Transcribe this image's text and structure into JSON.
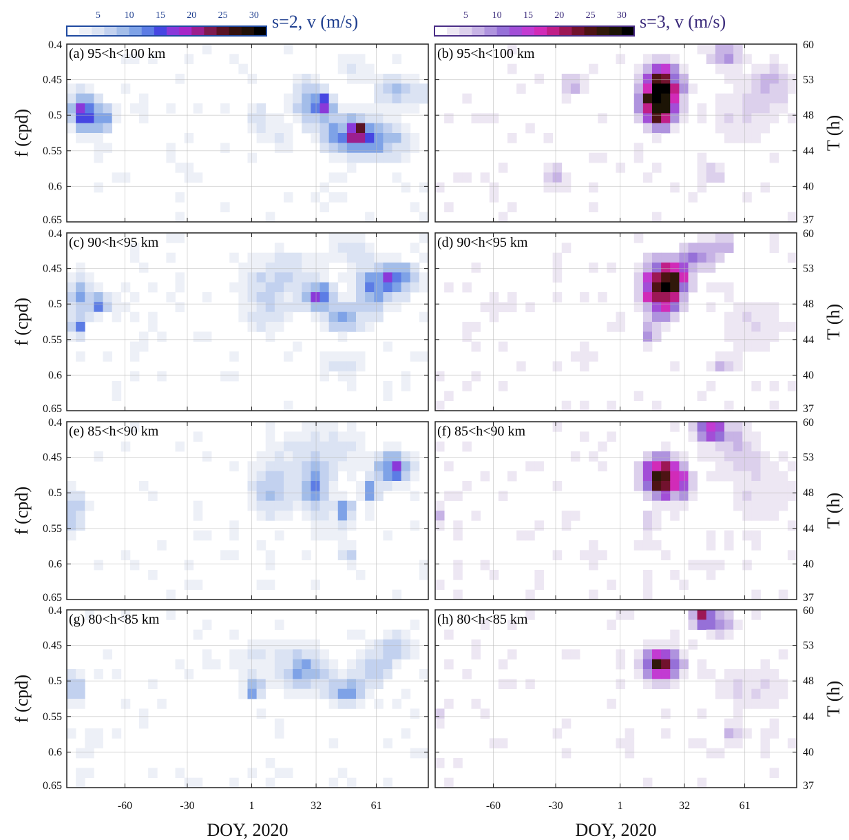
{
  "chart_data": {
    "type": "heatmap",
    "xlabel": "DOY, 2020",
    "ylabel_left": "f (cpd)",
    "ylabel_right": "T (h)",
    "x_ticks": [
      "-60",
      "-30",
      "1",
      "32",
      "61"
    ],
    "x_tick_values": [
      -60,
      -30,
      1,
      32,
      61
    ],
    "xlim": [
      -88,
      86
    ],
    "y_ticks": [
      "0.4",
      "0.45",
      "0.5",
      "0.55",
      "0.6",
      "0.65"
    ],
    "y_tick_values": [
      0.4,
      0.45,
      0.5,
      0.55,
      0.6,
      0.65
    ],
    "ylim": [
      0.4,
      0.65
    ],
    "period_ticks": [
      "60",
      "53",
      "48",
      "44",
      "40",
      "37"
    ],
    "grid": true,
    "colorbars": [
      {
        "title": "s=2, v (m/s)",
        "ticks": [
          "5",
          "10",
          "15",
          "20",
          "25",
          "30"
        ],
        "tick_values": [
          5,
          10,
          15,
          20,
          25,
          30
        ],
        "range": [
          0,
          32
        ],
        "colors": [
          "#ffffff",
          "#edf0f7",
          "#dbe3f3",
          "#c2d1ef",
          "#a3bde9",
          "#7ea2e7",
          "#5c7ce5",
          "#4646e2",
          "#8a39d9",
          "#a627c8",
          "#9c1f8e",
          "#7e1b4f",
          "#5a1325",
          "#35120f",
          "#201008",
          "#000000"
        ],
        "color": "#1f3f8f",
        "frame_color": "#1f4aa0"
      },
      {
        "title": "s=3, v (m/s)",
        "ticks": [
          "5",
          "10",
          "15",
          "20",
          "25",
          "30"
        ],
        "tick_values": [
          5,
          10,
          15,
          20,
          25,
          30
        ],
        "range": [
          0,
          32
        ],
        "colors": [
          "#ffffff",
          "#ede7f3",
          "#dcd0ec",
          "#c7b3e5",
          "#af93de",
          "#9670d8",
          "#a24ed7",
          "#c23bd2",
          "#d12bb8",
          "#c01e88",
          "#9c1755",
          "#72122e",
          "#4d1314",
          "#30180a",
          "#1c1405",
          "#000000"
        ],
        "color": "#3a2a7a",
        "frame_color": "#4a2d86"
      }
    ],
    "panels": [
      {
        "id": "a",
        "label": "(a) 95<h<100 km",
        "wave": "s=2",
        "blobs": [
          {
            "x": -80,
            "y": 0.495,
            "sx": 5,
            "sy": 0.022,
            "amp": 15
          },
          {
            "x": -70,
            "y": 0.505,
            "sx": 4,
            "sy": 0.015,
            "amp": 9
          },
          {
            "x": -40,
            "y": 0.565,
            "sx": 7,
            "sy": 0.01,
            "amp": 3
          },
          {
            "x": -28,
            "y": 0.585,
            "sx": 5,
            "sy": 0.012,
            "amp": 4
          },
          {
            "x": 4,
            "y": 0.505,
            "sx": 4,
            "sy": 0.02,
            "amp": 6
          },
          {
            "x": 14,
            "y": 0.53,
            "sx": 4,
            "sy": 0.015,
            "amp": 5
          },
          {
            "x": 28,
            "y": 0.48,
            "sx": 6,
            "sy": 0.022,
            "amp": 10
          },
          {
            "x": 36,
            "y": 0.485,
            "sx": 3,
            "sy": 0.01,
            "amp": 13
          },
          {
            "x": 45,
            "y": 0.525,
            "sx": 9,
            "sy": 0.022,
            "amp": 11
          },
          {
            "x": 52,
            "y": 0.525,
            "sx": 3,
            "sy": 0.01,
            "amp": 15
          },
          {
            "x": 64,
            "y": 0.535,
            "sx": 10,
            "sy": 0.02,
            "amp": 10
          },
          {
            "x": 70,
            "y": 0.465,
            "sx": 7,
            "sy": 0.018,
            "amp": 8
          },
          {
            "x": 50,
            "y": 0.43,
            "sx": 7,
            "sy": 0.02,
            "amp": 4
          },
          {
            "x": 82,
            "y": 0.47,
            "sx": 4,
            "sy": 0.015,
            "amp": 4
          },
          {
            "x": 40,
            "y": 0.62,
            "sx": 5,
            "sy": 0.012,
            "amp": 3
          }
        ]
      },
      {
        "id": "b",
        "label": "(b) 95<h<100 km",
        "wave": "s=3",
        "blobs": [
          {
            "x": 21,
            "y": 0.468,
            "sx": 6,
            "sy": 0.025,
            "amp": 33
          },
          {
            "x": 18,
            "y": 0.49,
            "sx": 5,
            "sy": 0.02,
            "amp": 14
          },
          {
            "x": -22,
            "y": 0.455,
            "sx": 5,
            "sy": 0.012,
            "amp": 8
          },
          {
            "x": 52,
            "y": 0.415,
            "sx": 6,
            "sy": 0.012,
            "amp": 9
          },
          {
            "x": -65,
            "y": 0.5,
            "sx": 10,
            "sy": 0.015,
            "amp": 3
          },
          {
            "x": -30,
            "y": 0.585,
            "sx": 4,
            "sy": 0.015,
            "amp": 7
          },
          {
            "x": 60,
            "y": 0.5,
            "sx": 15,
            "sy": 0.04,
            "amp": 4
          },
          {
            "x": 75,
            "y": 0.455,
            "sx": 8,
            "sy": 0.02,
            "amp": 5
          },
          {
            "x": 45,
            "y": 0.58,
            "sx": 6,
            "sy": 0.012,
            "amp": 5
          },
          {
            "x": 10,
            "y": 0.555,
            "sx": 4,
            "sy": 0.012,
            "amp": 4
          }
        ]
      },
      {
        "id": "c",
        "label": "(c) 90<h<95 km",
        "wave": "s=2",
        "blobs": [
          {
            "x": -82,
            "y": 0.49,
            "sx": 4,
            "sy": 0.025,
            "amp": 10
          },
          {
            "x": -72,
            "y": 0.5,
            "sx": 3,
            "sy": 0.012,
            "amp": 14
          },
          {
            "x": -83,
            "y": 0.535,
            "sx": 2,
            "sy": 0.01,
            "amp": 13
          },
          {
            "x": 8,
            "y": 0.5,
            "sx": 10,
            "sy": 0.035,
            "amp": 6
          },
          {
            "x": 33,
            "y": 0.49,
            "sx": 5,
            "sy": 0.014,
            "amp": 14
          },
          {
            "x": 44,
            "y": 0.52,
            "sx": 5,
            "sy": 0.015,
            "amp": 11
          },
          {
            "x": 70,
            "y": 0.465,
            "sx": 8,
            "sy": 0.016,
            "amp": 15
          },
          {
            "x": 58,
            "y": 0.49,
            "sx": 6,
            "sy": 0.03,
            "amp": 8
          },
          {
            "x": 20,
            "y": 0.45,
            "sx": 14,
            "sy": 0.025,
            "amp": 4
          },
          {
            "x": 45,
            "y": 0.585,
            "sx": 10,
            "sy": 0.015,
            "amp": 5
          },
          {
            "x": 50,
            "y": 0.42,
            "sx": 8,
            "sy": 0.02,
            "amp": 4
          }
        ]
      },
      {
        "id": "d",
        "label": "(d) 90<h<95 km",
        "wave": "s=3",
        "blobs": [
          {
            "x": 21,
            "y": 0.478,
            "sx": 6,
            "sy": 0.025,
            "amp": 30
          },
          {
            "x": 30,
            "y": 0.46,
            "sx": 4,
            "sy": 0.015,
            "amp": 12
          },
          {
            "x": 40,
            "y": 0.43,
            "sx": 6,
            "sy": 0.015,
            "amp": 10
          },
          {
            "x": 52,
            "y": 0.415,
            "sx": 4,
            "sy": 0.01,
            "amp": 7
          },
          {
            "x": 15,
            "y": 0.545,
            "sx": 3,
            "sy": 0.012,
            "amp": 8
          },
          {
            "x": -60,
            "y": 0.5,
            "sx": 10,
            "sy": 0.02,
            "amp": 3
          },
          {
            "x": 65,
            "y": 0.53,
            "sx": 15,
            "sy": 0.04,
            "amp": 4
          },
          {
            "x": 50,
            "y": 0.585,
            "sx": 5,
            "sy": 0.01,
            "amp": 5
          },
          {
            "x": -20,
            "y": 0.58,
            "sx": 6,
            "sy": 0.012,
            "amp": 3
          }
        ]
      },
      {
        "id": "e",
        "label": "(e) 85<h<90 km",
        "wave": "s=2",
        "blobs": [
          {
            "x": -84,
            "y": 0.525,
            "sx": 4,
            "sy": 0.025,
            "amp": 8
          },
          {
            "x": -30,
            "y": 0.54,
            "sx": 3,
            "sy": 0.01,
            "amp": 3
          },
          {
            "x": 10,
            "y": 0.5,
            "sx": 9,
            "sy": 0.03,
            "amp": 7
          },
          {
            "x": 32,
            "y": 0.495,
            "sx": 5,
            "sy": 0.025,
            "amp": 11
          },
          {
            "x": 46,
            "y": 0.525,
            "sx": 3,
            "sy": 0.012,
            "amp": 12
          },
          {
            "x": 58,
            "y": 0.5,
            "sx": 3,
            "sy": 0.012,
            "amp": 12
          },
          {
            "x": 70,
            "y": 0.465,
            "sx": 6,
            "sy": 0.015,
            "amp": 15
          },
          {
            "x": 35,
            "y": 0.44,
            "sx": 18,
            "sy": 0.03,
            "amp": 5
          },
          {
            "x": 48,
            "y": 0.59,
            "sx": 3,
            "sy": 0.008,
            "amp": 8
          },
          {
            "x": 40,
            "y": 0.56,
            "sx": 10,
            "sy": 0.02,
            "amp": 3
          }
        ]
      },
      {
        "id": "f",
        "label": "(f) 85<h<90 km",
        "wave": "s=3",
        "blobs": [
          {
            "x": 21,
            "y": 0.478,
            "sx": 6,
            "sy": 0.02,
            "amp": 28
          },
          {
            "x": 32,
            "y": 0.49,
            "sx": 3,
            "sy": 0.015,
            "amp": 10
          },
          {
            "x": 44,
            "y": 0.41,
            "sx": 6,
            "sy": 0.012,
            "amp": 13
          },
          {
            "x": 55,
            "y": 0.43,
            "sx": 10,
            "sy": 0.025,
            "amp": 5
          },
          {
            "x": -86,
            "y": 0.53,
            "sx": 3,
            "sy": 0.015,
            "amp": 6
          },
          {
            "x": 70,
            "y": 0.5,
            "sx": 15,
            "sy": 0.04,
            "amp": 4
          },
          {
            "x": 15,
            "y": 0.545,
            "sx": 3,
            "sy": 0.012,
            "amp": 6
          },
          {
            "x": -10,
            "y": 0.59,
            "sx": 6,
            "sy": 0.015,
            "amp": 3
          },
          {
            "x": 45,
            "y": 0.6,
            "sx": 8,
            "sy": 0.015,
            "amp": 3
          }
        ]
      },
      {
        "id": "g",
        "label": "(g) 80<h<85 km",
        "wave": "s=2",
        "blobs": [
          {
            "x": -84,
            "y": 0.51,
            "sx": 4,
            "sy": 0.02,
            "amp": 8
          },
          {
            "x": 2,
            "y": 0.51,
            "sx": 3,
            "sy": 0.012,
            "amp": 10
          },
          {
            "x": 28,
            "y": 0.49,
            "sx": 8,
            "sy": 0.02,
            "amp": 8
          },
          {
            "x": 47,
            "y": 0.515,
            "sx": 6,
            "sy": 0.015,
            "amp": 10
          },
          {
            "x": 60,
            "y": 0.48,
            "sx": 6,
            "sy": 0.02,
            "amp": 8
          },
          {
            "x": 72,
            "y": 0.45,
            "sx": 6,
            "sy": 0.015,
            "amp": 8
          },
          {
            "x": 10,
            "y": 0.47,
            "sx": 20,
            "sy": 0.03,
            "amp": 4
          },
          {
            "x": -75,
            "y": 0.58,
            "sx": 8,
            "sy": 0.02,
            "amp": 3
          },
          {
            "x": 0,
            "y": 0.62,
            "sx": 10,
            "sy": 0.015,
            "amp": 2
          }
        ]
      },
      {
        "id": "h",
        "label": "(h) 80<h<85 km",
        "wave": "s=3",
        "blobs": [
          {
            "x": 21,
            "y": 0.478,
            "sx": 6,
            "sy": 0.015,
            "amp": 24
          },
          {
            "x": 41,
            "y": 0.408,
            "sx": 4,
            "sy": 0.01,
            "amp": 18
          },
          {
            "x": 50,
            "y": 0.42,
            "sx": 6,
            "sy": 0.012,
            "amp": 8
          },
          {
            "x": 65,
            "y": 0.51,
            "sx": 18,
            "sy": 0.03,
            "amp": 4
          },
          {
            "x": -86,
            "y": 0.55,
            "sx": 3,
            "sy": 0.015,
            "amp": 5
          },
          {
            "x": 55,
            "y": 0.575,
            "sx": 4,
            "sy": 0.012,
            "amp": 6
          },
          {
            "x": 5,
            "y": 0.59,
            "sx": 8,
            "sy": 0.02,
            "amp": 3
          },
          {
            "x": 40,
            "y": 0.64,
            "sx": 4,
            "sy": 0.01,
            "amp": 3
          }
        ]
      }
    ]
  }
}
